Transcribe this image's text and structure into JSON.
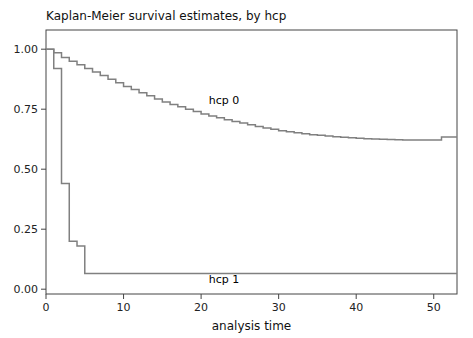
{
  "chart_data": {
    "type": "step",
    "title": "Kaplan-Meier survival estimates, by hcp",
    "xlabel": "analysis time",
    "xlim": [
      0,
      53
    ],
    "ylim": [
      -0.02,
      1.08
    ],
    "xticks": [
      0,
      10,
      20,
      30,
      40,
      50
    ],
    "yticks": [
      {
        "value": 0.0,
        "label": "0.00"
      },
      {
        "value": 0.25,
        "label": "0.25"
      },
      {
        "value": 0.5,
        "label": "0.50"
      },
      {
        "value": 0.75,
        "label": "0.75"
      },
      {
        "value": 1.0,
        "label": "1.00"
      }
    ],
    "grid": false,
    "series": [
      {
        "color": "#808080",
        "x": [
          0,
          1,
          2,
          3,
          4,
          5,
          6,
          7,
          8,
          9,
          10,
          11,
          12,
          13,
          14,
          15,
          16,
          17,
          18,
          19,
          20,
          21,
          22,
          23,
          24,
          25,
          26,
          27,
          28,
          29,
          30,
          31,
          32,
          33,
          34,
          35,
          36,
          37,
          38,
          39,
          40,
          41,
          42,
          43,
          44,
          45,
          46,
          47,
          48,
          49,
          50,
          51,
          53
        ],
        "values": [
          1.0,
          0.985,
          0.965,
          0.95,
          0.935,
          0.92,
          0.905,
          0.89,
          0.875,
          0.86,
          0.845,
          0.832,
          0.819,
          0.806,
          0.793,
          0.78,
          0.77,
          0.76,
          0.75,
          0.74,
          0.73,
          0.722,
          0.714,
          0.706,
          0.699,
          0.692,
          0.685,
          0.678,
          0.672,
          0.666,
          0.66,
          0.656,
          0.652,
          0.648,
          0.644,
          0.641,
          0.638,
          0.635,
          0.633,
          0.631,
          0.629,
          0.627,
          0.626,
          0.625,
          0.624,
          0.623,
          0.622,
          0.622,
          0.622,
          0.622,
          0.622,
          0.634,
          0.634
        ]
      },
      {
        "color": "#808080",
        "x": [
          0,
          1,
          2,
          3,
          4,
          5,
          6,
          14,
          27,
          53
        ],
        "values": [
          1.0,
          0.92,
          0.44,
          0.2,
          0.18,
          0.065,
          0.065,
          0.065,
          0.065,
          0.065
        ]
      }
    ],
    "annotations": [
      {
        "text": "hcp 0",
        "x": 21,
        "y": 0.77
      },
      {
        "text": "hcp 1",
        "x": 21,
        "y": 0.025
      }
    ]
  }
}
